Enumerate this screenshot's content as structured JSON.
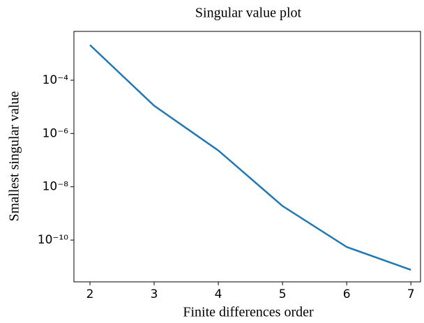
{
  "chart_data": {
    "type": "line",
    "title": "Singular value plot",
    "x_label": "Finite differences order",
    "y_label": "Smallest singular value",
    "x": [
      2,
      3,
      4,
      5,
      6,
      7
    ],
    "series": [
      {
        "name": "Smallest singular value",
        "color": "#1f77b4",
        "values": [
          0.0021,
          1.1e-05,
          2.3e-07,
          1.9e-09,
          5.5e-11,
          7.6e-12
        ]
      }
    ],
    "xlim": [
      1.75,
      7.15
    ],
    "xticks": [
      2,
      3,
      4,
      5,
      6,
      7
    ],
    "ylim": [
      0.0068,
      2.7e-12
    ],
    "ylog": true,
    "yticks": [
      {
        "value": 0.0001,
        "label": "10⁻⁴"
      },
      {
        "value": 1e-06,
        "label": "10⁻⁶"
      },
      {
        "value": 1e-08,
        "label": "10⁻⁸"
      },
      {
        "value": 1e-10,
        "label": "10⁻¹⁰"
      }
    ],
    "grid": false
  }
}
